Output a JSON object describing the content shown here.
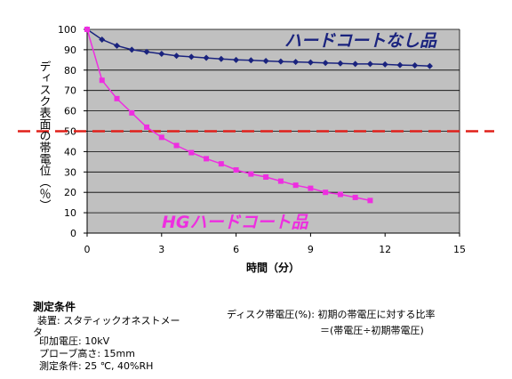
{
  "chart_data": {
    "type": "line",
    "xlabel": "時間（分）",
    "ylabel": "ディスク表面の帯電位（％）",
    "xlim": [
      0,
      15
    ],
    "ylim": [
      0,
      100
    ],
    "xticks": [
      0,
      3,
      6,
      9,
      12,
      15
    ],
    "yticks": [
      0,
      10,
      20,
      30,
      40,
      50,
      60,
      70,
      80,
      90,
      100
    ],
    "grid": true,
    "reference_line": {
      "y": 50,
      "color": "#e0201a"
    },
    "series": [
      {
        "name": "ハードコートなし品",
        "color": "#1a237e",
        "marker": "diamond",
        "x": [
          0,
          0.6,
          1.2,
          1.8,
          2.4,
          3.0,
          3.6,
          4.2,
          4.8,
          5.4,
          6.0,
          6.6,
          7.2,
          7.8,
          8.4,
          9.0,
          9.6,
          10.2,
          10.8,
          11.4,
          12.0,
          12.6,
          13.2,
          13.8
        ],
        "values": [
          100,
          95,
          92,
          90,
          89,
          88,
          87,
          86.5,
          86,
          85.5,
          85,
          84.8,
          84.5,
          84.2,
          84,
          83.8,
          83.5,
          83.3,
          83,
          83,
          82.8,
          82.5,
          82.3,
          82
        ]
      },
      {
        "name": "HGハードコート品",
        "color": "#ee2ee0",
        "marker": "square",
        "x": [
          0,
          0.6,
          1.2,
          1.8,
          2.4,
          3.0,
          3.6,
          4.2,
          4.8,
          5.4,
          6.0,
          6.6,
          7.2,
          7.8,
          8.4,
          9.0,
          9.6,
          10.2,
          10.8,
          11.4
        ],
        "values": [
          100,
          75,
          66,
          59,
          52,
          47,
          43,
          39.5,
          36.5,
          34,
          31,
          29,
          27.5,
          25.5,
          23.5,
          22,
          20,
          19,
          17.5,
          16
        ]
      }
    ]
  },
  "conditions": {
    "title": "測定条件",
    "items": [
      "装置: スタティックオネストメー",
      "タ",
      "印加電圧: 10kV",
      "プローブ高さ: 15mm",
      "測定条件: 25 ℃, 40%RH"
    ]
  },
  "definition": {
    "line1": "ディスク帯電圧(%):  初期の帯電圧に対する比率",
    "line2": "＝(帯電圧÷初期帯電圧)"
  }
}
